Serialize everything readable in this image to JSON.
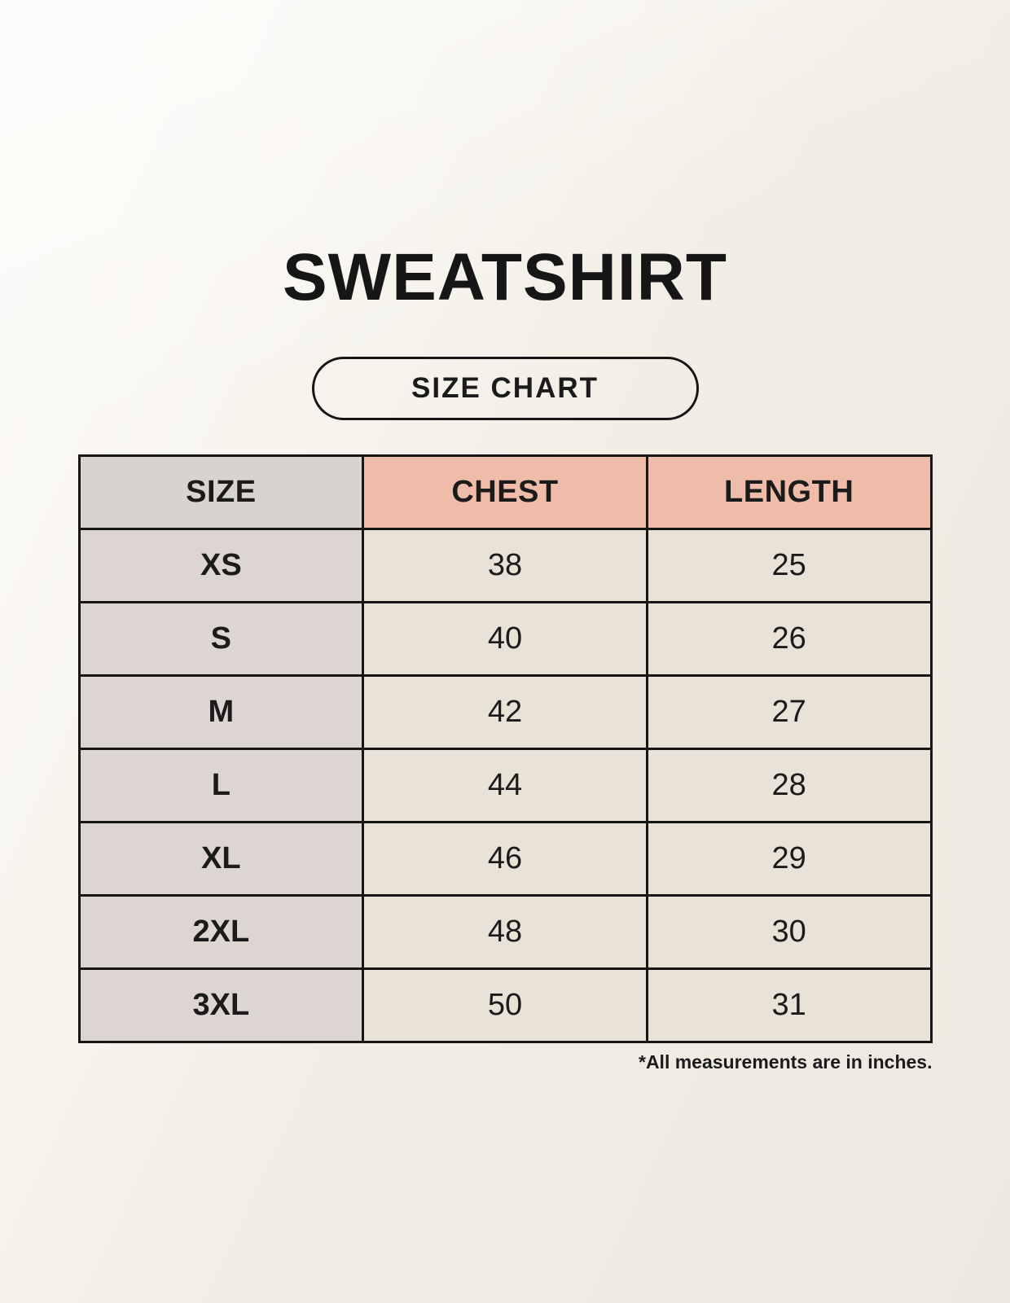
{
  "page": {
    "title": "SWEATSHIRT",
    "size_chart_badge": "SIZE CHART",
    "footnote": "*All measurements are in inches."
  },
  "colors": {
    "page_background": "#f8f4ec",
    "header_accent_pink": "#efbcaa",
    "header_gray": "#d9d3cf",
    "row_label_gray": "#dcd5d1",
    "value_cell_cream": "#e9e2d7",
    "table_border": "#161616",
    "text": "#1b1b1b"
  },
  "chart_data": {
    "type": "table",
    "title": "SWEATSHIRT",
    "columns": [
      "SIZE",
      "CHEST",
      "LENGTH"
    ],
    "rows": [
      [
        "XS",
        "38",
        "25"
      ],
      [
        "S",
        "40",
        "26"
      ],
      [
        "M",
        "42",
        "27"
      ],
      [
        "L",
        "44",
        "28"
      ],
      [
        "XL",
        "46",
        "29"
      ],
      [
        "2XL",
        "48",
        "30"
      ],
      [
        "3XL",
        "50",
        "31"
      ]
    ],
    "units": "inches",
    "units_note": "*All measurements are in inches."
  }
}
